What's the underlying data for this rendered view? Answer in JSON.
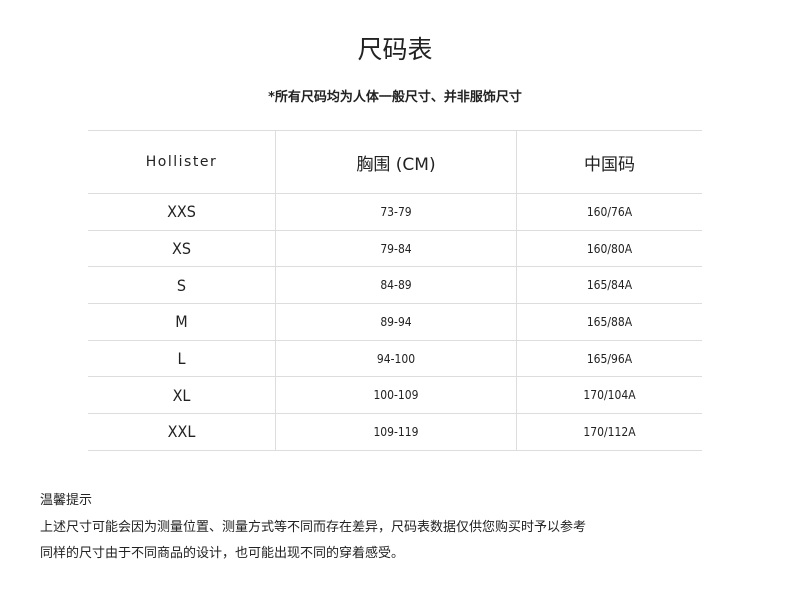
{
  "title": "尺码表",
  "subtitle": "*所有尺码均为人体一般尺寸、并非服饰尺寸",
  "table": {
    "headers": [
      "Hollister",
      "胸围 (CM)",
      "中国码"
    ],
    "rows": [
      [
        "XXS",
        "73-79",
        "160/76A"
      ],
      [
        "XS",
        "79-84",
        "160/80A"
      ],
      [
        "S",
        "84-89",
        "165/84A"
      ],
      [
        "M",
        "89-94",
        "165/88A"
      ],
      [
        "L",
        "94-100",
        "165/96A"
      ],
      [
        "XL",
        "100-109",
        "170/104A"
      ],
      [
        "XXL",
        "109-119",
        "170/112A"
      ]
    ]
  },
  "notes": {
    "heading": "温馨提示",
    "lines": [
      "上述尺寸可能会因为测量位置、测量方式等不同而存在差异，尺码表数据仅供您购买时予以参考",
      "同样的尺寸由于不同商品的设计，也可能出现不同的穿着感受。"
    ]
  }
}
